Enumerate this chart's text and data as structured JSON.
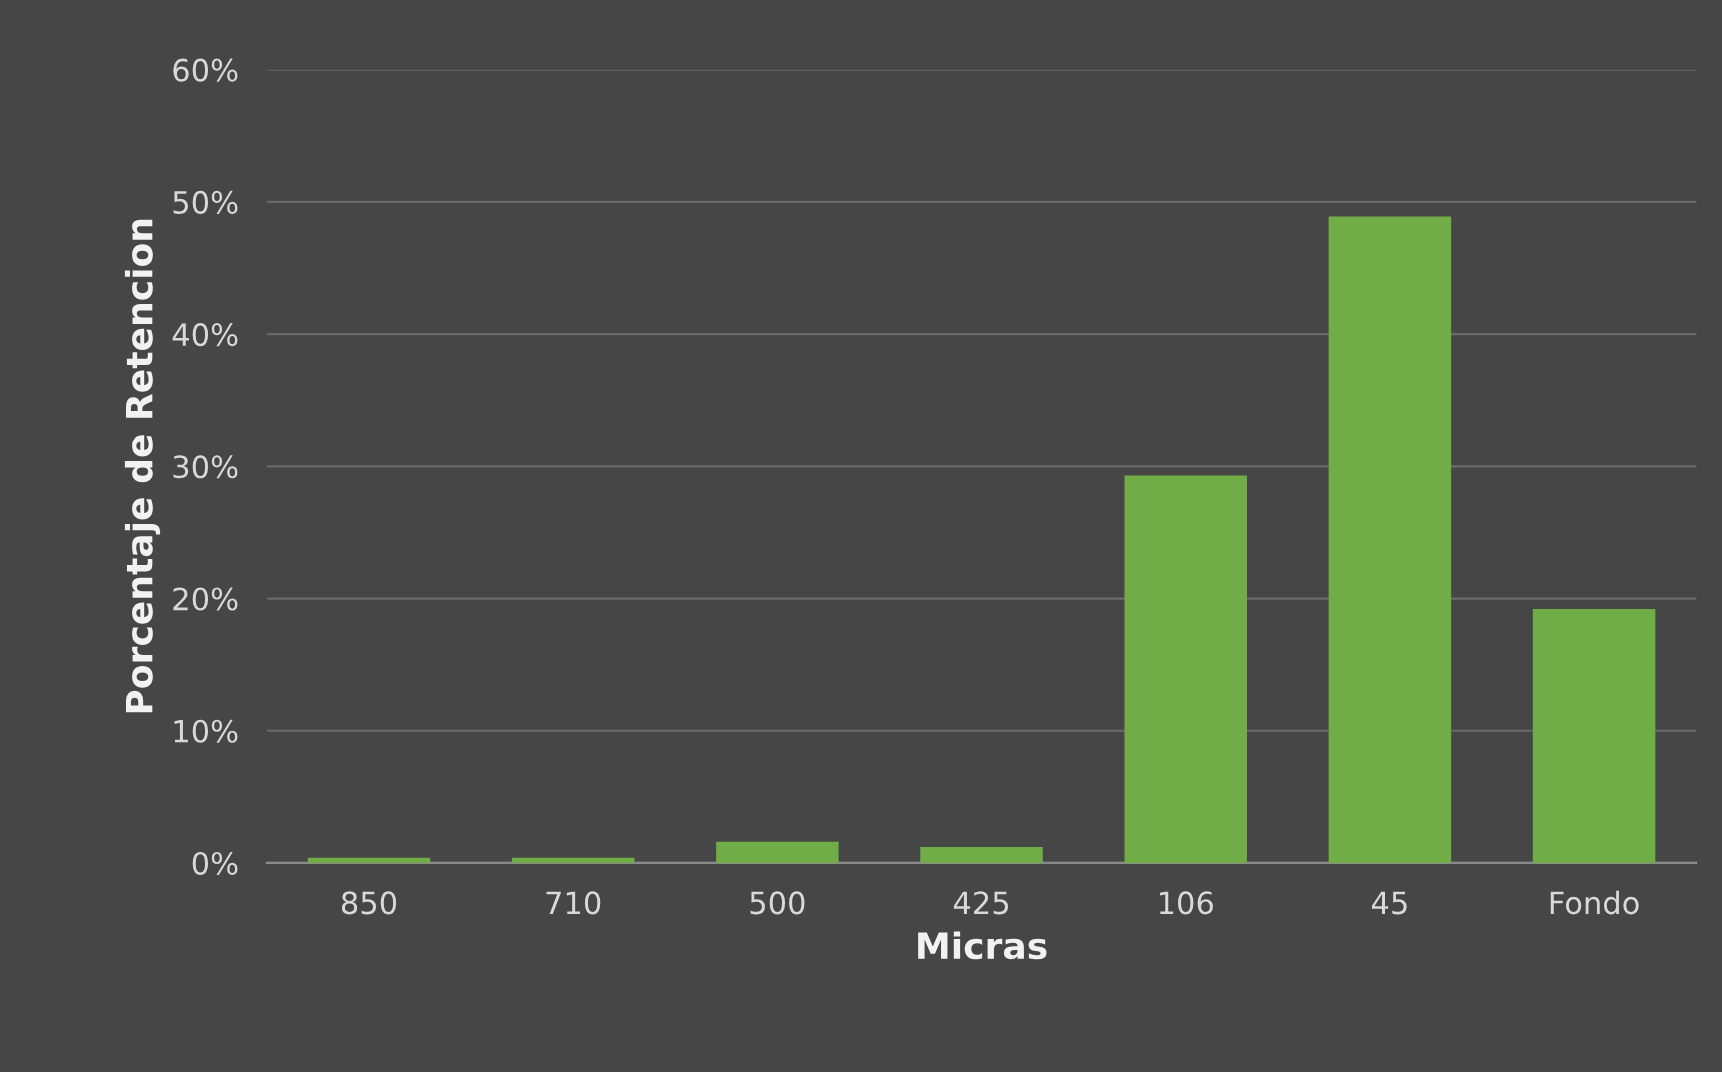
{
  "chart_data": {
    "type": "bar",
    "xlabel": "Micras",
    "ylabel": "Porcentaje de Retencion",
    "categories": [
      "850",
      "710",
      "500",
      "425",
      "106",
      "45",
      "Fondo"
    ],
    "values": [
      0.4,
      0.4,
      1.6,
      1.2,
      29.3,
      48.9,
      19.2
    ],
    "color": "#70ad47",
    "ylim": [
      0,
      60
    ],
    "yticks": [
      {
        "value": 0,
        "label": "0%"
      },
      {
        "value": 10,
        "label": "10%"
      },
      {
        "value": 20,
        "label": "20%"
      },
      {
        "value": 30,
        "label": "30%"
      },
      {
        "value": 40,
        "label": "40%"
      },
      {
        "value": 50,
        "label": "50%"
      },
      {
        "value": 60,
        "label": "60%"
      }
    ],
    "grid": "y",
    "legend": false
  }
}
